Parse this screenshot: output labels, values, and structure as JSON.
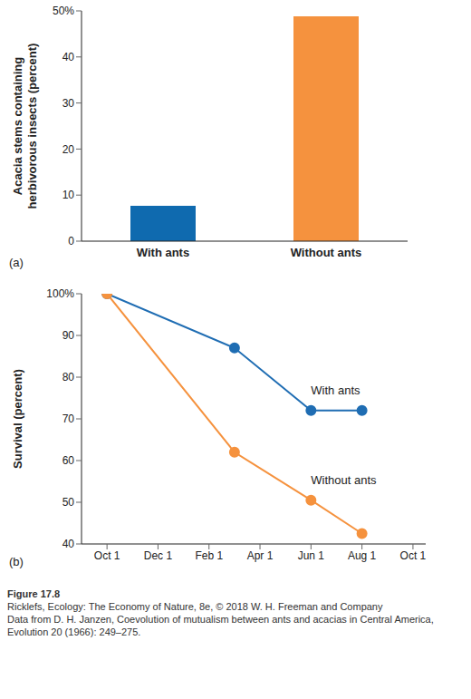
{
  "chart_data": [
    {
      "type": "bar",
      "panel": "(a)",
      "y_label": "Acacia stems containing herbivorous insects (percent)",
      "categories": [
        "With ants",
        "Without ants"
      ],
      "values": [
        7.7,
        48.8
      ],
      "colors": [
        "#0f6aaf",
        "#f5923e"
      ],
      "ylim": [
        0,
        50
      ],
      "yticks": [
        0,
        10,
        20,
        30,
        40,
        {
          "value": 50,
          "label": "50%"
        }
      ],
      "grid": false
    },
    {
      "type": "line",
      "panel": "(b)",
      "y_label": "Survival (percent)",
      "x": [
        0,
        5,
        8,
        10
      ],
      "xlim": [
        -1,
        12.5
      ],
      "xticks": [
        {
          "value": 0,
          "label": "Oct 1"
        },
        {
          "value": 2,
          "label": "Dec 1"
        },
        {
          "value": 4,
          "label": "Feb 1"
        },
        {
          "value": 6,
          "label": "Apr 1"
        },
        {
          "value": 8,
          "label": "Jun 1"
        },
        {
          "value": 10,
          "label": "Aug 1"
        },
        {
          "value": 12,
          "label": "Oct 1"
        }
      ],
      "ylim": [
        40,
        100
      ],
      "yticks": [
        40,
        50,
        60,
        70,
        80,
        90,
        {
          "value": 100,
          "label": "100%"
        }
      ],
      "grid": false,
      "series": [
        {
          "name": "With ants",
          "color": "#1f6db3",
          "marker": "circle",
          "values": [
            100,
            87,
            72,
            72
          ]
        },
        {
          "name": "Without ants",
          "color": "#f5923e",
          "marker": "circle",
          "values": [
            100,
            62,
            50.5,
            42.5
          ]
        }
      ]
    }
  ],
  "caption": {
    "figure": "Figure 17.8",
    "lines": [
      "Ricklefs, Ecology: The Economy of Nature, 8e, © 2018 W. H. Freeman and Company",
      "Data from D. H. Janzen, Coevolution of mutualism between ants and acacias in Central America, Evolution 20 (1966): 249–275."
    ]
  }
}
